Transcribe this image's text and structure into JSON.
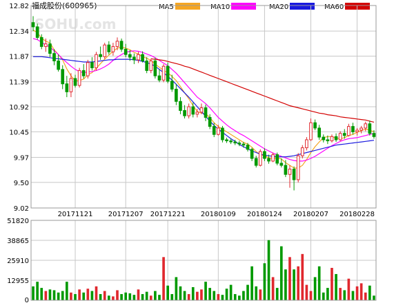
{
  "title": "福成股份(600965)",
  "watermark": "SOHU.com",
  "legend": [
    {
      "label": "MA5",
      "color": "#f5a623"
    },
    {
      "label": "MA10",
      "color": "#ff00ff"
    },
    {
      "label": "MA20",
      "color": "#1a1adf"
    },
    {
      "label": "MA60",
      "color": "#d30000"
    }
  ],
  "colors": {
    "up": "#e0282e",
    "down": "#009900",
    "grid": "#c7c7c7"
  },
  "chart_data": [
    {
      "type": "candlestick",
      "title": "福成股份(600965)",
      "ylim": [
        9.02,
        12.82
      ],
      "y_ticks": [
        "12.82",
        "12.34",
        "11.87",
        "11.39",
        "10.92",
        "10.45",
        "9.97",
        "9.50",
        "9.02"
      ],
      "x_ticks": [
        {
          "label": "20171121",
          "index": 10
        },
        {
          "label": "20171207",
          "index": 22
        },
        {
          "label": "20171221",
          "index": 32
        },
        {
          "label": "20180109",
          "index": 44
        },
        {
          "label": "20180124",
          "index": 55
        },
        {
          "label": "20180207",
          "index": 66
        },
        {
          "label": "20180228",
          "index": 77
        }
      ],
      "ohlc": [
        [
          12.5,
          12.62,
          12.34,
          12.42
        ],
        [
          12.42,
          12.48,
          12.18,
          12.22
        ],
        [
          12.22,
          12.28,
          12.0,
          12.05
        ],
        [
          12.05,
          12.2,
          11.95,
          12.1
        ],
        [
          12.1,
          12.18,
          11.85,
          11.92
        ],
        [
          11.92,
          12.0,
          11.7,
          11.78
        ],
        [
          11.78,
          11.9,
          11.58,
          11.62
        ],
        [
          11.62,
          11.7,
          11.25,
          11.35
        ],
        [
          11.35,
          11.5,
          11.1,
          11.2
        ],
        [
          11.2,
          11.55,
          11.1,
          11.45
        ],
        [
          11.45,
          11.52,
          11.28,
          11.32
        ],
        [
          11.32,
          11.65,
          11.28,
          11.6
        ],
        [
          11.6,
          11.72,
          11.45,
          11.5
        ],
        [
          11.5,
          11.8,
          11.45,
          11.75
        ],
        [
          11.75,
          11.85,
          11.6,
          11.65
        ],
        [
          11.65,
          11.95,
          11.6,
          11.9
        ],
        [
          11.9,
          12.05,
          11.8,
          11.86
        ],
        [
          11.86,
          12.12,
          11.82,
          12.08
        ],
        [
          12.08,
          12.15,
          11.9,
          11.95
        ],
        [
          11.95,
          12.12,
          11.88,
          12.05
        ],
        [
          12.05,
          12.22,
          11.98,
          12.15
        ],
        [
          12.15,
          12.2,
          11.95,
          12.0
        ],
        [
          12.0,
          12.1,
          11.85,
          11.9
        ],
        [
          11.9,
          11.98,
          11.78,
          11.85
        ],
        [
          11.85,
          11.92,
          11.72,
          11.8
        ],
        [
          11.8,
          11.95,
          11.74,
          11.9
        ],
        [
          11.9,
          11.96,
          11.75,
          11.78
        ],
        [
          11.78,
          11.85,
          11.55,
          11.6
        ],
        [
          11.6,
          11.82,
          11.55,
          11.78
        ],
        [
          11.78,
          11.84,
          11.45,
          11.5
        ],
        [
          11.5,
          11.62,
          11.38,
          11.42
        ],
        [
          11.42,
          11.72,
          11.38,
          11.68
        ],
        [
          11.68,
          11.75,
          11.36,
          11.4
        ],
        [
          11.4,
          11.52,
          11.2,
          11.25
        ],
        [
          11.25,
          11.35,
          10.95,
          11.02
        ],
        [
          11.02,
          11.1,
          10.78,
          10.85
        ],
        [
          10.85,
          10.95,
          10.7,
          10.75
        ],
        [
          10.75,
          10.98,
          10.7,
          10.92
        ],
        [
          10.92,
          11.0,
          10.72,
          10.78
        ],
        [
          10.78,
          10.88,
          10.72,
          10.82
        ],
        [
          10.82,
          10.98,
          10.78,
          10.9
        ],
        [
          10.9,
          10.96,
          10.65,
          10.72
        ],
        [
          10.72,
          10.78,
          10.5,
          10.55
        ],
        [
          10.55,
          10.62,
          10.35,
          10.4
        ],
        [
          10.4,
          10.58,
          10.38,
          10.52
        ],
        [
          10.52,
          10.56,
          10.25,
          10.3
        ],
        [
          10.3,
          10.34,
          10.24,
          10.28
        ],
        [
          10.28,
          10.32,
          10.22,
          10.26
        ],
        [
          10.26,
          10.3,
          10.2,
          10.24
        ],
        [
          10.24,
          10.28,
          10.18,
          10.22
        ],
        [
          10.22,
          10.26,
          10.15,
          10.2
        ],
        [
          10.2,
          10.24,
          10.08,
          10.12
        ],
        [
          10.12,
          10.15,
          9.9,
          9.95
        ],
        [
          9.95,
          10.0,
          9.78,
          9.82
        ],
        [
          9.82,
          10.12,
          9.8,
          10.08
        ],
        [
          10.08,
          10.14,
          9.9,
          9.95
        ],
        [
          9.95,
          10.02,
          9.85,
          9.9
        ],
        [
          9.9,
          10.06,
          9.88,
          10.02
        ],
        [
          10.02,
          10.06,
          9.82,
          9.86
        ],
        [
          9.86,
          9.95,
          9.78,
          9.82
        ],
        [
          9.82,
          9.92,
          9.6,
          9.65
        ],
        [
          9.65,
          9.82,
          9.4,
          9.75
        ],
        [
          9.75,
          9.8,
          9.35,
          9.55
        ],
        [
          9.55,
          10.05,
          9.5,
          10.0
        ],
        [
          10.0,
          10.2,
          9.95,
          10.15
        ],
        [
          10.15,
          10.35,
          10.1,
          10.3
        ],
        [
          10.3,
          10.7,
          10.28,
          10.62
        ],
        [
          10.62,
          10.68,
          10.48,
          10.52
        ],
        [
          10.52,
          10.58,
          10.3,
          10.35
        ],
        [
          10.35,
          10.4,
          10.25,
          10.3
        ],
        [
          10.3,
          10.38,
          10.22,
          10.28
        ],
        [
          10.28,
          10.4,
          10.25,
          10.36
        ],
        [
          10.36,
          10.42,
          10.26,
          10.3
        ],
        [
          10.3,
          10.46,
          10.28,
          10.42
        ],
        [
          10.42,
          10.5,
          10.32,
          10.38
        ],
        [
          10.38,
          10.6,
          10.36,
          10.55
        ],
        [
          10.55,
          10.62,
          10.4,
          10.45
        ],
        [
          10.45,
          10.52,
          10.38,
          10.48
        ],
        [
          10.48,
          10.56,
          10.42,
          10.52
        ],
        [
          10.52,
          10.64,
          10.46,
          10.6
        ],
        [
          10.6,
          10.66,
          10.38,
          10.42
        ],
        [
          10.42,
          10.48,
          10.32,
          10.36
        ]
      ],
      "ma5": [
        12.36,
        12.31,
        12.21,
        12.15,
        12.12,
        11.99,
        11.9,
        11.8,
        11.63,
        11.5,
        11.41,
        11.41,
        11.44,
        11.52,
        11.56,
        11.64,
        11.73,
        11.81,
        11.89,
        11.96,
        12.02,
        12.04,
        12.02,
        11.99,
        11.94,
        11.91,
        11.86,
        11.83,
        11.79,
        11.72,
        11.66,
        11.6,
        11.56,
        11.49,
        11.41,
        11.3,
        11.18,
        11.07,
        10.94,
        10.83,
        10.8,
        10.79,
        10.72,
        10.62,
        10.55,
        10.5,
        10.45,
        10.4,
        10.35,
        10.3,
        10.25,
        10.22,
        10.16,
        10.08,
        10.02,
        10.0,
        9.96,
        9.94,
        9.96,
        9.94,
        9.87,
        9.82,
        9.77,
        9.77,
        9.82,
        9.93,
        10.06,
        10.17,
        10.26,
        10.34,
        10.36,
        10.36,
        10.33,
        10.32,
        10.34,
        10.38,
        10.4,
        10.44,
        10.47,
        10.5,
        10.48,
        10.45
      ],
      "ma10": [
        12.2,
        12.18,
        12.13,
        12.08,
        12.04,
        11.97,
        11.9,
        11.82,
        11.75,
        11.68,
        11.62,
        11.58,
        11.56,
        11.57,
        11.58,
        11.6,
        11.63,
        11.67,
        11.72,
        11.79,
        11.85,
        11.9,
        11.94,
        11.96,
        11.97,
        11.96,
        11.94,
        11.91,
        11.88,
        11.84,
        11.79,
        11.74,
        11.69,
        11.62,
        11.55,
        11.46,
        11.37,
        11.28,
        11.19,
        11.1,
        11.04,
        10.98,
        10.9,
        10.81,
        10.72,
        10.65,
        10.58,
        10.52,
        10.47,
        10.42,
        10.38,
        10.33,
        10.28,
        10.23,
        10.18,
        10.13,
        10.09,
        10.05,
        10.02,
        9.99,
        9.96,
        9.93,
        9.91,
        9.9,
        9.9,
        9.92,
        9.95,
        9.99,
        10.04,
        10.09,
        10.14,
        10.19,
        10.23,
        10.27,
        10.3,
        10.32,
        10.33,
        10.34,
        10.36,
        10.38,
        10.4,
        10.42
      ],
      "ma20": [
        11.86,
        11.86,
        11.86,
        11.85,
        11.84,
        11.83,
        11.82,
        11.81,
        11.8,
        11.79,
        11.78,
        11.77,
        11.76,
        11.76,
        11.76,
        11.77,
        11.78,
        11.79,
        11.8,
        11.8,
        11.81,
        11.81,
        11.81,
        11.81,
        11.8,
        11.79,
        11.77,
        11.75,
        11.72,
        11.68,
        11.62,
        11.56,
        11.49,
        11.42,
        11.34,
        11.26,
        11.18,
        11.1,
        11.01,
        10.92,
        10.83,
        10.74,
        10.65,
        10.57,
        10.5,
        10.44,
        10.38,
        10.32,
        10.27,
        10.21,
        10.17,
        10.13,
        10.09,
        10.06,
        10.03,
        10.01,
        10.0,
        9.99,
        9.98,
        9.98,
        9.98,
        9.99,
        10.0,
        10.02,
        10.04,
        10.06,
        10.08,
        10.1,
        10.12,
        10.14,
        10.16,
        10.18,
        10.2,
        10.21,
        10.22,
        10.23,
        10.24,
        10.25,
        10.26,
        10.27,
        10.28,
        10.29
      ],
      "ma60": [
        null,
        null,
        null,
        null,
        null,
        null,
        null,
        null,
        null,
        null,
        null,
        null,
        null,
        null,
        null,
        null,
        null,
        null,
        null,
        null,
        null,
        null,
        null,
        null,
        null,
        null,
        null,
        null,
        11.82,
        11.81,
        11.8,
        11.79,
        11.77,
        11.75,
        11.73,
        11.71,
        11.68,
        11.66,
        11.63,
        11.6,
        11.57,
        11.54,
        11.51,
        11.48,
        11.45,
        11.42,
        11.39,
        11.36,
        11.33,
        11.3,
        11.27,
        11.24,
        11.21,
        11.18,
        11.15,
        11.12,
        11.09,
        11.06,
        11.03,
        11.0,
        10.97,
        10.94,
        10.92,
        10.9,
        10.88,
        10.86,
        10.84,
        10.82,
        10.8,
        10.79,
        10.77,
        10.76,
        10.75,
        10.73,
        10.72,
        10.71,
        10.7,
        10.69,
        10.68,
        10.67,
        10.65,
        10.63
      ]
    },
    {
      "type": "bar",
      "y_ticks": [
        "51820",
        "38865",
        "25910",
        "12955",
        "0"
      ],
      "ylim": [
        0,
        51820
      ],
      "volume": [
        9000,
        12000,
        8000,
        6000,
        7000,
        6500,
        5000,
        6000,
        12000,
        5000,
        4000,
        7000,
        5000,
        7500,
        6000,
        9000,
        4000,
        6000,
        3000,
        2500,
        6500,
        4000,
        5000,
        4500,
        3500,
        7000,
        4000,
        5500,
        3000,
        6000,
        3500,
        28000,
        9500,
        4000,
        15000,
        9000,
        6000,
        4000,
        8500,
        5500,
        7000,
        12000,
        8000,
        6000,
        4000,
        3500,
        7500,
        10000,
        4000,
        3000,
        6000,
        10000,
        22000,
        9000,
        7000,
        24000,
        39000,
        15000,
        8000,
        35000,
        20000,
        28000,
        20000,
        22000,
        30000,
        10000,
        6000,
        15000,
        22000,
        5000,
        8000,
        21000,
        17000,
        8000,
        6500,
        14000,
        6000,
        9000,
        11000,
        5000,
        9500,
        3000
      ]
    }
  ]
}
